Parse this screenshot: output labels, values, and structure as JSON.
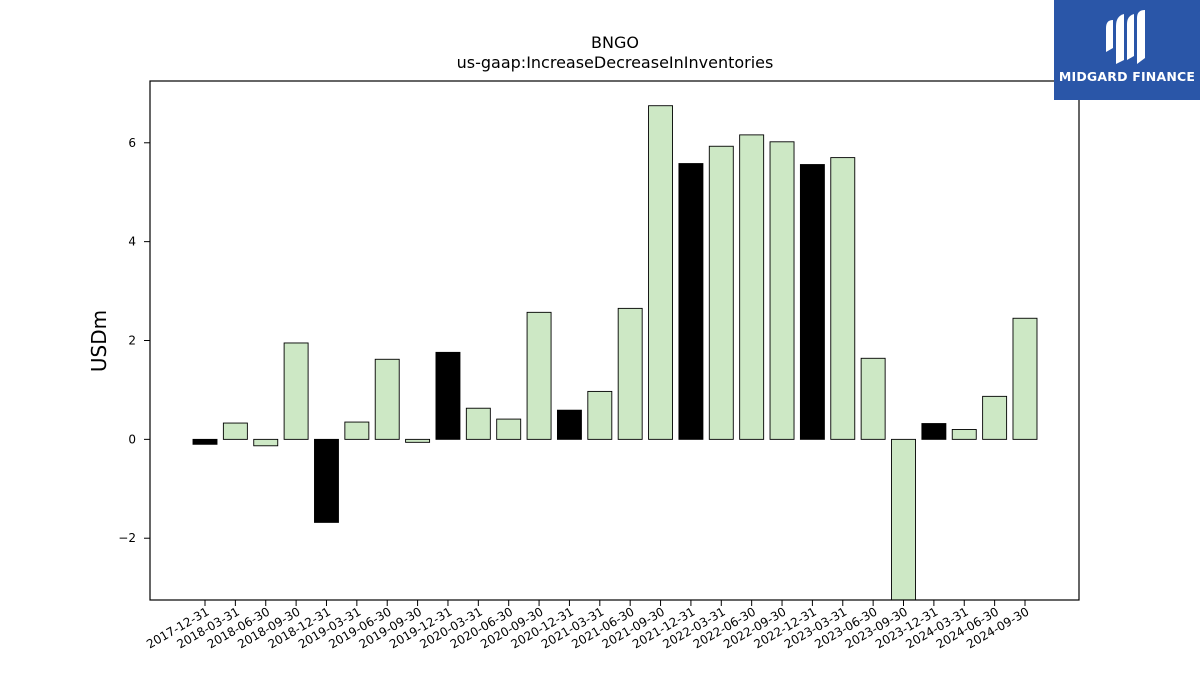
{
  "chart_data": {
    "type": "bar",
    "title": "BNGO",
    "subtitle": "us-gaap:IncreaseDecreaseInInventories",
    "xlabel": "",
    "ylabel": "USDm",
    "ylim": [
      -3.25,
      7.25
    ],
    "yticks": [
      -2,
      0,
      2,
      4,
      6
    ],
    "ytick_labels": [
      "−2",
      "0",
      "2",
      "4",
      "6"
    ],
    "grid": false,
    "categories": [
      "2017-12-31",
      "2018-03-31",
      "2018-06-30",
      "2018-09-30",
      "2018-12-31",
      "2019-03-31",
      "2019-06-30",
      "2019-09-30",
      "2019-12-31",
      "2020-03-31",
      "2020-06-30",
      "2020-09-30",
      "2020-12-31",
      "2021-03-31",
      "2021-06-30",
      "2021-09-30",
      "2021-12-31",
      "2022-03-31",
      "2022-06-30",
      "2022-09-30",
      "2022-12-31",
      "2023-03-31",
      "2023-06-30",
      "2023-09-30",
      "2023-12-31",
      "2024-03-31",
      "2024-06-30",
      "2024-09-30"
    ],
    "values": [
      -0.1,
      0.33,
      -0.13,
      1.95,
      -1.68,
      0.35,
      1.62,
      -0.06,
      1.76,
      0.63,
      0.41,
      2.57,
      0.59,
      0.97,
      2.65,
      6.75,
      5.58,
      5.93,
      6.16,
      6.02,
      5.56,
      5.7,
      1.64,
      -3.25,
      0.32,
      0.2,
      0.87,
      2.45
    ],
    "bar_colors": [
      "#000000",
      "#cde8c5",
      "#cde8c5",
      "#cde8c5",
      "#000000",
      "#cde8c5",
      "#cde8c5",
      "#cde8c5",
      "#000000",
      "#cde8c5",
      "#cde8c5",
      "#cde8c5",
      "#000000",
      "#cde8c5",
      "#cde8c5",
      "#cde8c5",
      "#000000",
      "#cde8c5",
      "#cde8c5",
      "#cde8c5",
      "#000000",
      "#cde8c5",
      "#cde8c5",
      "#cde8c5",
      "#000000",
      "#cde8c5",
      "#cde8c5",
      "#cde8c5"
    ]
  },
  "logo": {
    "text": "MIDGARD FINANCE",
    "background": "#2a56a8"
  }
}
